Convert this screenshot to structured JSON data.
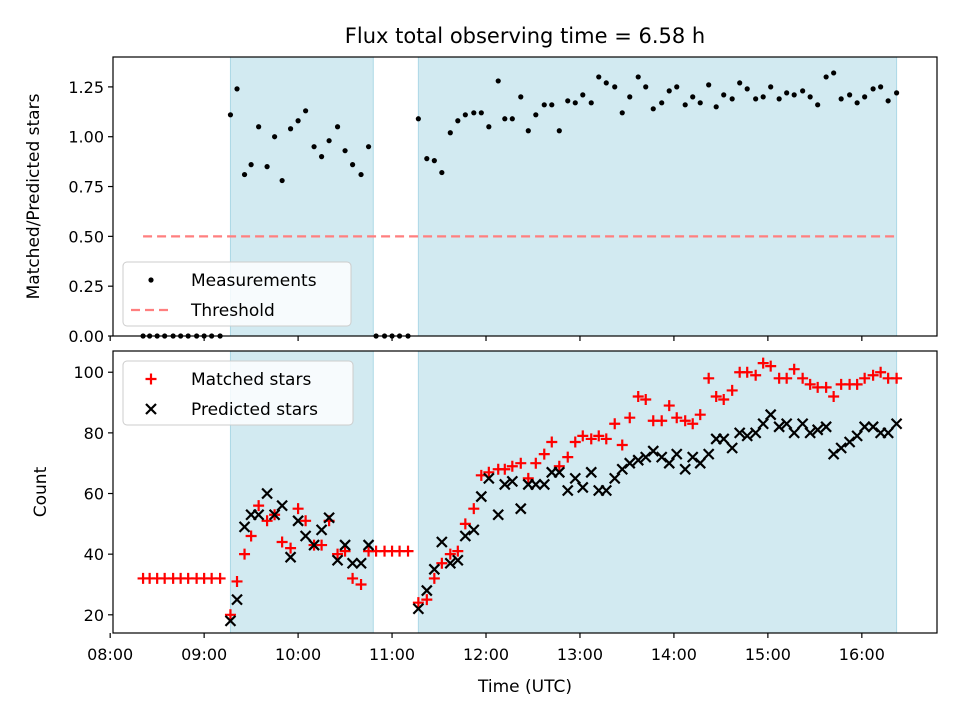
{
  "chart_data": {
    "title": "Flux total observing time = 6.58 h",
    "xlabel": "Time (UTC)",
    "xlim": [
      8.03,
      16.8
    ],
    "xticks": [
      "08:00",
      "09:00",
      "10:00",
      "11:00",
      "12:00",
      "13:00",
      "14:00",
      "15:00",
      "16:00"
    ],
    "xtick_values": [
      8,
      9,
      10,
      11,
      12,
      13,
      14,
      15,
      16
    ],
    "shaded_intervals": [
      [
        9.28,
        10.8
      ],
      [
        11.28,
        16.37
      ]
    ],
    "shade_color": "#add8e6",
    "panels": [
      {
        "type": "scatter",
        "ylabel": "Matched/Predicted stars",
        "ylim": [
          0,
          1.4
        ],
        "yticks": [
          "0.00",
          "0.25",
          "0.50",
          "0.75",
          "1.00",
          "1.25"
        ],
        "ytick_values": [
          0,
          0.25,
          0.5,
          0.75,
          1.0,
          1.25
        ],
        "legend_position": "lower-left",
        "series": [
          {
            "name": "Measurements",
            "marker": "dot",
            "color": "#000000",
            "x": [
              8.35,
              8.42,
              8.5,
              8.58,
              8.67,
              8.75,
              8.83,
              8.92,
              9.0,
              9.08,
              9.17,
              9.28,
              9.35,
              9.43,
              9.5,
              9.58,
              9.67,
              9.75,
              9.83,
              9.92,
              10.0,
              10.08,
              10.17,
              10.25,
              10.33,
              10.42,
              10.5,
              10.58,
              10.67,
              10.75,
              10.83,
              10.92,
              11.0,
              11.08,
              11.17,
              11.28,
              11.37,
              11.45,
              11.53,
              11.62,
              11.7,
              11.78,
              11.87,
              11.95,
              12.03,
              12.13,
              12.2,
              12.28,
              12.37,
              12.45,
              12.53,
              12.62,
              12.7,
              12.78,
              12.87,
              12.95,
              13.03,
              13.12,
              13.2,
              13.28,
              13.37,
              13.45,
              13.53,
              13.62,
              13.7,
              13.78,
              13.87,
              13.95,
              14.03,
              14.12,
              14.2,
              14.28,
              14.37,
              14.45,
              14.53,
              14.62,
              14.7,
              14.78,
              14.87,
              14.95,
              15.03,
              15.12,
              15.2,
              15.28,
              15.37,
              15.45,
              15.53,
              15.62,
              15.7,
              15.78,
              15.87,
              15.95,
              16.03,
              16.12,
              16.2,
              16.28,
              16.37
            ],
            "y": [
              0,
              0,
              0,
              0,
              0,
              0,
              0,
              0,
              0,
              0,
              0,
              1.11,
              1.24,
              0.81,
              0.86,
              1.05,
              0.85,
              1.0,
              0.78,
              1.04,
              1.08,
              1.13,
              0.95,
              0.9,
              0.98,
              1.05,
              0.93,
              0.86,
              0.81,
              0.95,
              0,
              0,
              0,
              0,
              0,
              1.09,
              0.89,
              0.88,
              0.82,
              1.02,
              1.08,
              1.11,
              1.12,
              1.12,
              1.05,
              1.28,
              1.09,
              1.09,
              1.2,
              1.03,
              1.11,
              1.16,
              1.16,
              1.03,
              1.18,
              1.17,
              1.21,
              1.17,
              1.3,
              1.27,
              1.25,
              1.12,
              1.2,
              1.3,
              1.25,
              1.14,
              1.17,
              1.23,
              1.25,
              1.16,
              1.2,
              1.17,
              1.26,
              1.15,
              1.21,
              1.19,
              1.27,
              1.24,
              1.19,
              1.2,
              1.25,
              1.19,
              1.22,
              1.21,
              1.23,
              1.2,
              1.16,
              1.3,
              1.32,
              1.19,
              1.21,
              1.17,
              1.2,
              1.24,
              1.25,
              1.18,
              1.22
            ]
          },
          {
            "name": "Threshold",
            "marker": "dashed-line",
            "color": "#ff7f7f",
            "x": [
              8.35,
              16.37
            ],
            "y": [
              0.5,
              0.5
            ]
          }
        ]
      },
      {
        "type": "scatter",
        "ylabel": "Count",
        "ylim": [
          14,
          107
        ],
        "yticks": [
          "20",
          "40",
          "60",
          "80",
          "100"
        ],
        "ytick_values": [
          20,
          40,
          60,
          80,
          100
        ],
        "legend_position": "upper-left",
        "series": [
          {
            "name": "Matched stars",
            "marker": "plus",
            "color": "#ff0000",
            "x": [
              8.35,
              8.42,
              8.5,
              8.58,
              8.67,
              8.75,
              8.83,
              8.92,
              9.0,
              9.08,
              9.17,
              9.28,
              9.35,
              9.43,
              9.5,
              9.58,
              9.67,
              9.75,
              9.83,
              9.92,
              10.0,
              10.08,
              10.17,
              10.25,
              10.33,
              10.42,
              10.5,
              10.58,
              10.67,
              10.75,
              10.83,
              10.92,
              11.0,
              11.08,
              11.17,
              11.28,
              11.37,
              11.45,
              11.53,
              11.62,
              11.7,
              11.78,
              11.87,
              11.95,
              12.03,
              12.13,
              12.2,
              12.28,
              12.37,
              12.45,
              12.53,
              12.62,
              12.7,
              12.78,
              12.87,
              12.95,
              13.03,
              13.12,
              13.2,
              13.28,
              13.37,
              13.45,
              13.53,
              13.62,
              13.7,
              13.78,
              13.87,
              13.95,
              14.03,
              14.12,
              14.2,
              14.28,
              14.37,
              14.45,
              14.53,
              14.62,
              14.7,
              14.78,
              14.87,
              14.95,
              15.03,
              15.12,
              15.2,
              15.28,
              15.37,
              15.45,
              15.53,
              15.62,
              15.7,
              15.78,
              15.87,
              15.95,
              16.03,
              16.12,
              16.2,
              16.28,
              16.37
            ],
            "y": [
              32,
              32,
              32,
              32,
              32,
              32,
              32,
              32,
              32,
              32,
              32,
              20,
              31,
              40,
              46,
              56,
              51,
              53,
              44,
              42,
              55,
              51,
              43,
              43,
              51,
              40,
              41,
              32,
              30,
              41,
              41,
              41,
              41,
              41,
              41,
              24,
              25,
              32,
              37,
              40,
              41,
              50,
              55,
              66,
              67,
              68,
              68,
              69,
              70,
              65,
              70,
              73,
              77,
              69,
              72,
              77,
              79,
              78,
              79,
              78,
              83,
              76,
              85,
              92,
              91,
              84,
              84,
              89,
              85,
              84,
              83,
              86,
              98,
              92,
              91,
              94,
              100,
              100,
              99,
              103,
              102,
              98,
              98,
              101,
              98,
              96,
              95,
              95,
              92,
              96,
              96,
              96,
              98,
              99,
              100,
              98,
              98
            ]
          },
          {
            "name": "Predicted stars",
            "marker": "x",
            "color": "#000000",
            "x": [
              9.28,
              9.35,
              9.43,
              9.5,
              9.58,
              9.67,
              9.75,
              9.83,
              9.92,
              10.0,
              10.08,
              10.17,
              10.25,
              10.33,
              10.42,
              10.5,
              10.58,
              10.67,
              10.75,
              11.28,
              11.37,
              11.45,
              11.53,
              11.62,
              11.7,
              11.78,
              11.87,
              11.95,
              12.03,
              12.13,
              12.2,
              12.28,
              12.37,
              12.45,
              12.53,
              12.62,
              12.7,
              12.78,
              12.87,
              12.95,
              13.03,
              13.12,
              13.2,
              13.28,
              13.37,
              13.45,
              13.53,
              13.62,
              13.7,
              13.78,
              13.87,
              13.95,
              14.03,
              14.12,
              14.2,
              14.28,
              14.37,
              14.45,
              14.53,
              14.62,
              14.7,
              14.78,
              14.87,
              14.95,
              15.03,
              15.12,
              15.2,
              15.28,
              15.37,
              15.45,
              15.53,
              15.62,
              15.7,
              15.78,
              15.87,
              15.95,
              16.03,
              16.12,
              16.2,
              16.28,
              16.37
            ],
            "y": [
              18,
              25,
              49,
              53,
              53,
              60,
              53,
              56,
              39,
              51,
              46,
              43,
              48,
              52,
              38,
              43,
              37,
              37,
              43,
              22,
              28,
              35,
              44,
              37,
              38,
              46,
              48,
              59,
              65,
              53,
              63,
              64,
              55,
              63,
              63,
              63,
              67,
              67,
              61,
              65,
              62,
              67,
              61,
              61,
              65,
              68,
              70,
              71,
              72,
              74,
              72,
              70,
              73,
              68,
              72,
              70,
              73,
              78,
              78,
              75,
              80,
              79,
              80,
              83,
              86,
              82,
              83,
              80,
              83,
              80,
              81,
              82,
              73,
              75,
              77,
              79,
              82,
              82,
              80,
              80,
              83
            ]
          }
        ]
      }
    ]
  }
}
